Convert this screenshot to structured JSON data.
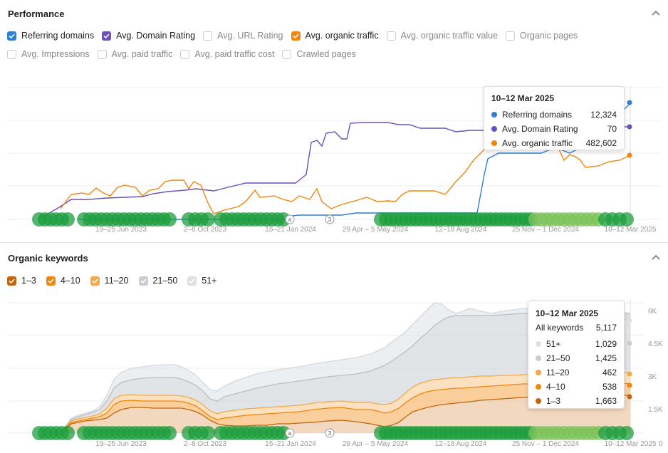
{
  "performance": {
    "title": "Performance",
    "metrics_row1": [
      {
        "label": "Referring domains",
        "checked": true,
        "color": "#2f7fd4"
      },
      {
        "label": "Avg. Domain Rating",
        "checked": true,
        "color": "#6b4fbb"
      },
      {
        "label": "Avg. URL Rating",
        "checked": false,
        "color": "#cccccc"
      },
      {
        "label": "Avg. organic traffic",
        "checked": true,
        "color": "#f0860c"
      },
      {
        "label": "Avg. organic traffic value",
        "checked": false,
        "color": "#cccccc"
      },
      {
        "label": "Organic pages",
        "checked": false,
        "color": "#cccccc"
      }
    ],
    "metrics_row2": [
      {
        "label": "Avg. Impressions",
        "checked": false
      },
      {
        "label": "Avg. paid traffic",
        "checked": false
      },
      {
        "label": "Avg. paid traffic cost",
        "checked": false
      },
      {
        "label": "Crawled pages",
        "checked": false
      }
    ],
    "x_ticks": [
      "19–25 Jun 2023",
      "2–8 Oct 2023",
      "15–21 Jan 2024",
      "29 Apr – 5 May 2024",
      "12–18 Aug 2024",
      "25 Nov – 1 Dec 2024",
      "10–12 Mar 2025"
    ],
    "markers": [
      "a",
      "3"
    ],
    "tooltip": {
      "title": "10–12 Mar 2025",
      "rows": [
        {
          "label": "Referring domains",
          "value": "12,324",
          "color": "#2f7fd4"
        },
        {
          "label": "Avg. Domain Rating",
          "value": "70",
          "color": "#6b4fbb"
        },
        {
          "label": "Avg. organic traffic",
          "value": "482,602",
          "color": "#f0860c"
        }
      ]
    }
  },
  "organic": {
    "title": "Organic keywords",
    "legend": [
      {
        "label": "1–3",
        "color": "#c2640a"
      },
      {
        "label": "4–10",
        "color": "#f0860c"
      },
      {
        "label": "11–20",
        "color": "#f5a84a"
      },
      {
        "label": "21–50",
        "color": "#c8cdd4"
      },
      {
        "label": "51+",
        "color": "#dde1e6"
      }
    ],
    "y_ticks": [
      "6K",
      "4.5K",
      "3K",
      "1.5K",
      "0"
    ],
    "x_ticks": [
      "19–25 Jun 2023",
      "2–8 Oct 2023",
      "15–21 Jan 2024",
      "29 Apr – 5 May 2024",
      "12–18 Aug 2024",
      "25 Nov – 1 Dec 2024",
      "10–12 Mar 2025"
    ],
    "markers": [
      "a",
      "3"
    ],
    "tooltip": {
      "title": "10–12 Mar 2025",
      "total_label": "All keywords",
      "total_value": "5,117",
      "rows": [
        {
          "label": "51+",
          "value": "1,029",
          "color": "#dde1e6"
        },
        {
          "label": "21–50",
          "value": "1,425",
          "color": "#c8cdd4"
        },
        {
          "label": "11–20",
          "value": "462",
          "color": "#f5a84a"
        },
        {
          "label": "4–10",
          "value": "538",
          "color": "#f0860c"
        },
        {
          "label": "1–3",
          "value": "1,663",
          "color": "#c2640a"
        }
      ]
    }
  }
}
